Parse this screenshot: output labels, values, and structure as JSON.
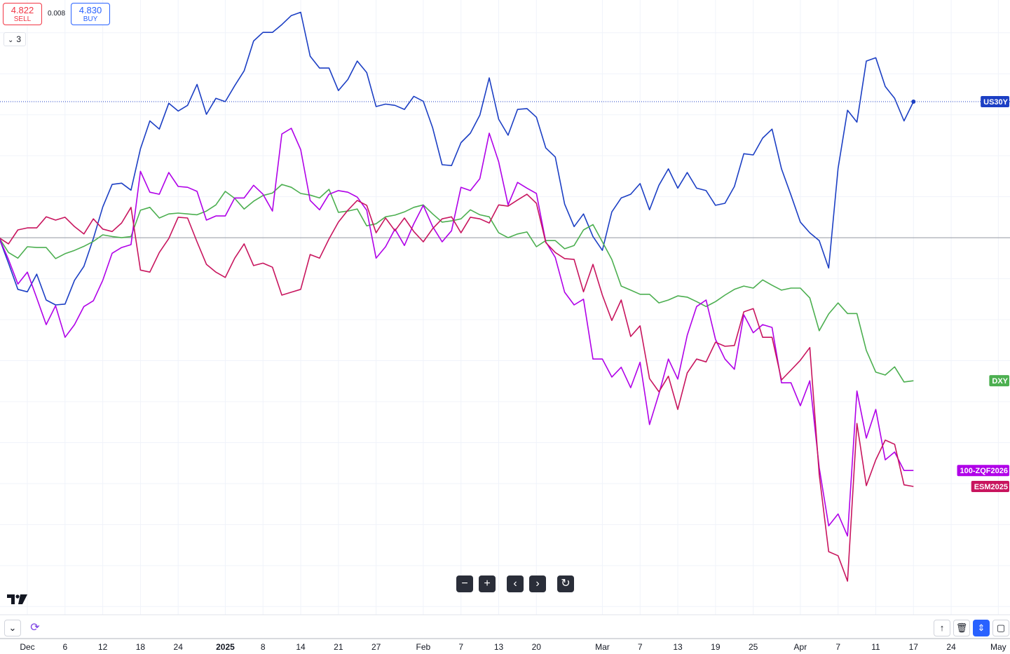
{
  "chart_data": {
    "type": "line",
    "categories": [
      null,
      null,
      null,
      "Dec",
      null,
      null,
      null,
      "6",
      null,
      null,
      null,
      "12",
      null,
      null,
      null,
      "18",
      null,
      null,
      null,
      "24",
      null,
      null,
      null,
      null,
      "2025",
      null,
      null,
      null,
      "8",
      null,
      null,
      null,
      "14",
      null,
      null,
      null,
      "21",
      null,
      null,
      null,
      "27",
      null,
      null,
      null,
      null,
      "Feb",
      null,
      null,
      null,
      "7",
      null,
      null,
      null,
      "13",
      null,
      null,
      null,
      "20",
      null,
      null,
      null,
      null,
      null,
      null,
      "Mar",
      null,
      null,
      null,
      "7",
      null,
      null,
      null,
      "13",
      null,
      null,
      null,
      "19",
      null,
      null,
      null,
      "25",
      null,
      null,
      null,
      null,
      "Apr",
      null,
      null,
      null,
      "7",
      null,
      null,
      null,
      "11",
      null,
      null,
      null,
      "17",
      null,
      null,
      null,
      "24",
      null,
      null,
      null,
      null,
      "May"
    ],
    "ylim": [
      -9.2,
      5.8
    ],
    "series": [
      {
        "name": "US30Y",
        "color": "#1c3fc4",
        "values": [
          0,
          -0.62,
          -1.26,
          -1.32,
          -0.89,
          -1.52,
          -1.64,
          -1.62,
          -1.04,
          -0.7,
          -0.02,
          0.75,
          1.3,
          1.33,
          1.16,
          2.17,
          2.85,
          2.65,
          3.28,
          3.09,
          3.23,
          3.74,
          3.01,
          3.4,
          3.32,
          3.71,
          4.07,
          4.8,
          5.01,
          5.01,
          5.2,
          5.42,
          5.5,
          4.43,
          4.14,
          4.14,
          3.59,
          3.86,
          4.31,
          4.03,
          3.2,
          3.26,
          3.23,
          3.13,
          3.45,
          3.33,
          2.68,
          1.78,
          1.76,
          2.32,
          2.55,
          2.99,
          3.9,
          2.89,
          2.5,
          3.13,
          3.15,
          2.94,
          2.19,
          1.97,
          0.82,
          0.27,
          0.58,
          0.03,
          -0.31,
          0.63,
          0.97,
          1.06,
          1.32,
          0.68,
          1.28,
          1.68,
          1.21,
          1.59,
          1.21,
          1.15,
          0.79,
          0.84,
          1.25,
          2.05,
          2.02,
          2.43,
          2.65,
          1.68,
          1.04,
          0.38,
          0.12,
          -0.07,
          -0.74,
          1.69,
          3.11,
          2.82,
          4.31,
          4.39,
          3.69,
          3.4,
          2.85,
          3.32,
          null,
          null,
          null,
          null,
          null,
          null,
          null,
          null,
          null
        ]
      },
      {
        "name": "DXY",
        "color": "#4caf50",
        "values": [
          0,
          -0.36,
          -0.5,
          -0.22,
          -0.24,
          -0.24,
          -0.51,
          -0.39,
          -0.31,
          -0.21,
          -0.09,
          0.07,
          0.03,
          0,
          0.03,
          0.67,
          0.74,
          0.48,
          0.58,
          0.6,
          0.58,
          0.56,
          0.65,
          0.8,
          1.13,
          0.96,
          0.7,
          0.89,
          1.03,
          1.09,
          1.3,
          1.23,
          1.08,
          1.04,
          0.97,
          1.18,
          0.62,
          0.65,
          0.7,
          0.29,
          0.34,
          0.51,
          0.55,
          0.63,
          0.74,
          0.8,
          0.58,
          0.38,
          0.41,
          0.46,
          0.68,
          0.56,
          0.51,
          0.12,
          0,
          0.09,
          0.14,
          -0.22,
          -0.07,
          -0.07,
          -0.27,
          -0.19,
          0.19,
          0.32,
          -0.1,
          -0.53,
          -1.18,
          -1.28,
          -1.38,
          -1.38,
          -1.59,
          -1.52,
          -1.42,
          -1.45,
          -1.56,
          -1.68,
          -1.56,
          -1.4,
          -1.26,
          -1.18,
          -1.23,
          -1.03,
          -1.16,
          -1.28,
          -1.23,
          -1.23,
          -1.47,
          -2.27,
          -1.86,
          -1.59,
          -1.85,
          -1.85,
          -2.75,
          -3.28,
          -3.35,
          -3.15,
          -3.52,
          -3.49,
          null,
          null,
          null,
          null,
          null,
          null,
          null,
          null,
          null
        ]
      },
      {
        "name": "100-ZQF2026",
        "color": "#b000e8",
        "values": [
          0,
          -0.53,
          -1.13,
          -0.84,
          -1.47,
          -2.12,
          -1.66,
          -2.43,
          -2.12,
          -1.68,
          -1.54,
          -1.04,
          -0.38,
          -0.24,
          -0.17,
          1.62,
          1.11,
          1.06,
          1.59,
          1.25,
          1.23,
          1.13,
          0.43,
          0.53,
          0.53,
          0.97,
          0.97,
          1.28,
          1.06,
          0.65,
          2.53,
          2.67,
          2.15,
          0.91,
          0.68,
          1.06,
          1.15,
          1.11,
          0.99,
          0.67,
          -0.5,
          -0.22,
          0.21,
          -0.19,
          0.34,
          0.79,
          0.27,
          -0.1,
          0.17,
          1.23,
          1.15,
          1.44,
          2.55,
          1.85,
          0.8,
          1.35,
          1.21,
          1.08,
          -0.1,
          -0.48,
          -1.33,
          -1.64,
          -1.5,
          -2.96,
          -2.96,
          -3.4,
          -3.16,
          -3.66,
          -3.04,
          -4.56,
          -3.81,
          -2.96,
          -3.45,
          -2.38,
          -1.68,
          -1.52,
          -2.48,
          -2.96,
          -3.21,
          -1.88,
          -2.32,
          -2.12,
          -2.19,
          -3.54,
          -3.54,
          -4.1,
          -3.49,
          -5.61,
          -7.03,
          -6.74,
          -7.28,
          -3.74,
          -4.89,
          -4.19,
          -5.42,
          -5.23,
          -5.68,
          -5.68,
          null,
          null,
          null,
          null,
          null,
          null,
          null,
          null,
          null
        ]
      },
      {
        "name": "ESM2025",
        "color": "#c8155e",
        "values": [
          0,
          -0.15,
          0.19,
          0.24,
          0.24,
          0.51,
          0.43,
          0.5,
          0.27,
          0.09,
          0.46,
          0.21,
          0.15,
          0.36,
          0.74,
          -0.79,
          -0.84,
          -0.36,
          -0.02,
          0.5,
          0.48,
          -0.1,
          -0.65,
          -0.84,
          -0.97,
          -0.5,
          -0.15,
          -0.68,
          -0.62,
          -0.72,
          -1.4,
          -1.33,
          -1.26,
          -0.41,
          -0.5,
          -0.03,
          0.38,
          0.67,
          0.91,
          0.79,
          0.12,
          0.48,
          0.17,
          0.48,
          0.15,
          -0.1,
          0.22,
          0.46,
          0.51,
          0.12,
          0.5,
          0.46,
          0.36,
          0.8,
          0.77,
          0.92,
          1.06,
          0.84,
          -0.12,
          -0.36,
          -0.51,
          -0.53,
          -1.32,
          -0.65,
          -1.4,
          -2.02,
          -1.52,
          -2.41,
          -2.15,
          -3.44,
          -3.76,
          -3.38,
          -4.19,
          -3.3,
          -2.96,
          -3.03,
          -2.55,
          -2.65,
          -2.63,
          -1.81,
          -1.73,
          -2.43,
          -2.43,
          -3.47,
          -3.23,
          -2.99,
          -2.68,
          -5.78,
          -7.66,
          -7.76,
          -8.38,
          -4.53,
          -6.05,
          -5.42,
          -4.94,
          -5.04,
          -6.03,
          -6.07,
          null,
          null,
          null,
          null,
          null,
          null,
          null,
          null,
          null
        ]
      }
    ],
    "grid": true
  },
  "trade_panel": {
    "sell_price": "4.822",
    "sell_label": "SELL",
    "spread": "0.008",
    "buy_price": "4.830",
    "buy_label": "BUY",
    "indicator_count": "3"
  }
}
